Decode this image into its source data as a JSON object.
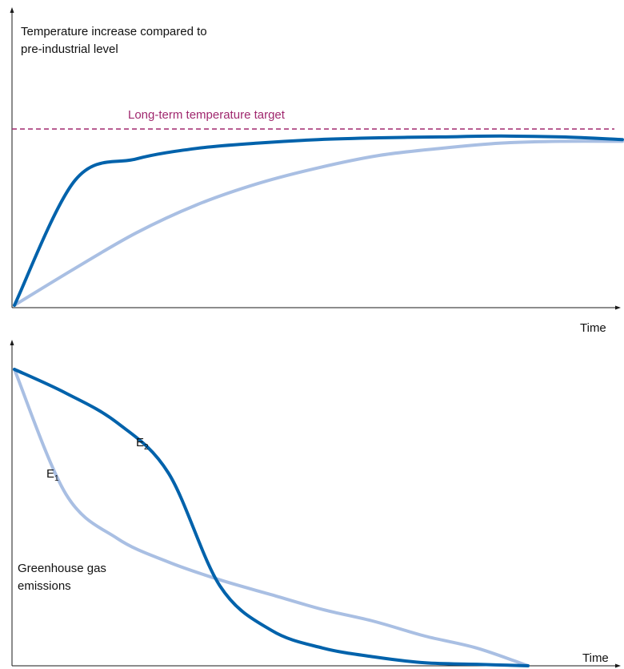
{
  "colors": {
    "dark_blue": "#0062ab",
    "light_blue": "#a9bfe3",
    "target": "#a0286e",
    "axis": "#1a1a1a"
  },
  "top_chart": {
    "ylabel_line1": "Temperature increase compared to",
    "ylabel_line2": "pre-industrial level",
    "xlabel": "Time",
    "target_label": "Long-term temperature target"
  },
  "bottom_chart": {
    "ylabel_line1": "Greenhouse gas",
    "ylabel_line2": "emissions",
    "xlabel": "Time",
    "e1_main": "E",
    "e1_sub": "1",
    "e2_main": "E",
    "e2_sub": "2"
  },
  "chart_data": [
    {
      "type": "line",
      "title": "",
      "xlabel": "Time",
      "ylabel": "Temperature increase compared to pre-industrial level",
      "x": [
        0,
        0.1,
        0.2,
        0.3,
        0.4,
        0.5,
        0.6,
        0.7,
        0.8,
        0.9,
        1.0
      ],
      "xlim": [
        0,
        1
      ],
      "ylim": [
        0,
        1
      ],
      "target_line": {
        "label": "Long-term temperature target",
        "y": 1.0,
        "style": "dashed"
      },
      "series": [
        {
          "color": "#0062ab",
          "values": [
            0.0,
            0.71,
            0.83,
            0.89,
            0.92,
            0.94,
            0.95,
            0.955,
            0.96,
            0.955,
            0.94
          ]
        },
        {
          "color": "#a9bfe3",
          "values": [
            0.0,
            0.21,
            0.41,
            0.57,
            0.69,
            0.78,
            0.85,
            0.89,
            0.92,
            0.93,
            0.93
          ]
        }
      ],
      "grid": false
    },
    {
      "type": "line",
      "title": "",
      "xlabel": "Time",
      "ylabel": "Greenhouse gas emissions",
      "x": [
        0,
        0.1,
        0.2,
        0.3,
        0.4,
        0.5,
        0.6,
        0.7,
        0.8,
        0.9,
        1.0
      ],
      "xlim": [
        0,
        1
      ],
      "ylim": [
        0,
        1
      ],
      "series": [
        {
          "name": "E1",
          "color": "#a9bfe3",
          "values": [
            1.0,
            0.58,
            0.43,
            0.35,
            0.29,
            0.24,
            0.19,
            0.15,
            0.1,
            0.06,
            0.0
          ]
        },
        {
          "name": "E2",
          "color": "#0062ab",
          "values": [
            1.0,
            0.92,
            0.82,
            0.65,
            0.27,
            0.12,
            0.06,
            0.03,
            0.01,
            0.005,
            0.0
          ]
        }
      ],
      "grid": false
    }
  ]
}
